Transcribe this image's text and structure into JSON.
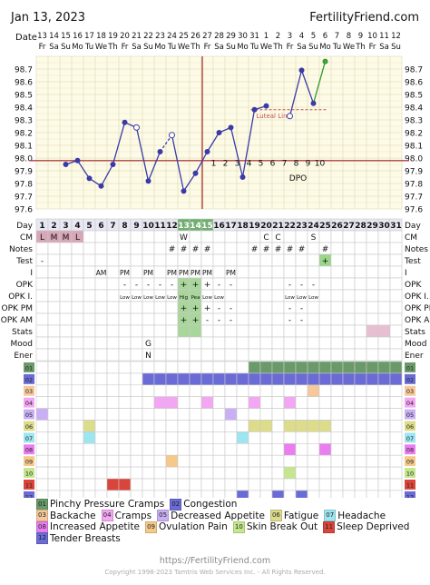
{
  "header": {
    "date": "Jan 13, 2023",
    "brand": "FertilityFriend.com"
  },
  "chart_data": {
    "type": "line",
    "title": "",
    "xlabel": "Day",
    "ylabel": "",
    "ylim": [
      97.6,
      98.8
    ],
    "y_ticks": [
      "98.7",
      "98.6",
      "98.5",
      "98.4",
      "98.3",
      "98.2",
      "98.1",
      "98.0",
      "97.9",
      "97.8",
      "97.7",
      "97.6"
    ],
    "dates": [
      "13",
      "14",
      "15",
      "16",
      "17",
      "18",
      "19",
      "20",
      "21",
      "22",
      "23",
      "24",
      "25",
      "26",
      "27",
      "28",
      "29",
      "30",
      "31",
      "1",
      "2",
      "3",
      "4",
      "5",
      "6",
      "7",
      "8",
      "9",
      "10",
      "11",
      "12"
    ],
    "weekdays": [
      "Fr",
      "Sa",
      "Su",
      "Mo",
      "Tu",
      "We",
      "Th",
      "Fr",
      "Sa",
      "Su",
      "Mo",
      "Tu",
      "We",
      "Th",
      "Fr",
      "Sa",
      "Su",
      "Mo",
      "Tu",
      "We",
      "Th",
      "Fr",
      "Sa",
      "Su",
      "Mo",
      "Tu",
      "We",
      "Th",
      "Fr",
      "Sa",
      "Su"
    ],
    "cycle_days": [
      "1",
      "2",
      "3",
      "4",
      "5",
      "6",
      "7",
      "8",
      "9",
      "10",
      "11",
      "12",
      "13",
      "14",
      "15",
      "16",
      "17",
      "18",
      "19",
      "20",
      "21",
      "22",
      "23",
      "24",
      "25",
      "26",
      "27",
      "28",
      "29",
      "30",
      "31"
    ],
    "temperatures": [
      null,
      null,
      97.95,
      97.98,
      97.84,
      97.78,
      97.95,
      98.28,
      98.24,
      97.82,
      98.05,
      98.18,
      97.74,
      97.88,
      98.05,
      98.2,
      98.24,
      97.85,
      98.38,
      98.41,
      null,
      98.33,
      98.69,
      98.43,
      98.76,
      null,
      null,
      null,
      null,
      null,
      null
    ],
    "open_circle_days": [
      9,
      12,
      22
    ],
    "open_circle_days_note": "cycle days whose temperature point is drawn as an open circle",
    "coverline": 97.98,
    "ovulation_day": 15,
    "luteal_line": {
      "label": "Luteal Line",
      "value": 98.38
    },
    "dpo_label": "DPO",
    "dpo": [
      {
        "day": 15,
        "n": "1"
      },
      {
        "day": 16,
        "n": "2"
      },
      {
        "day": 17,
        "n": "3"
      },
      {
        "day": 18,
        "n": "4"
      },
      {
        "day": 19,
        "n": "5"
      },
      {
        "day": 20,
        "n": "6"
      },
      {
        "day": 21,
        "n": "7"
      },
      {
        "day": 22,
        "n": "8"
      },
      {
        "day": 23,
        "n": "9"
      },
      {
        "day": 24,
        "n": "10"
      }
    ]
  },
  "rows": {
    "labels": {
      "date": "Date",
      "day": "Day",
      "cm": "CM",
      "notes": "Notes",
      "test": "Test",
      "intercourse": "I",
      "opk": "OPK",
      "opki": "OPK I.",
      "opkpm": "OPK PM",
      "opkam": "OPK AM",
      "stats": "Stats",
      "mood": "Mood",
      "ener": "Ener"
    },
    "cm": {
      "1": "L",
      "2": "M",
      "3": "M",
      "4": "L",
      "13": "W",
      "20": "C",
      "21": "C",
      "24": "S"
    },
    "cm_colors": {
      "L": "#d9a6b8",
      "M": "#d9a6b8"
    },
    "notes": {
      "12": "#",
      "13": "#",
      "14": "#",
      "15": "#",
      "19": "#",
      "20": "#",
      "21": "#",
      "22": "#",
      "23": "#",
      "25": "#"
    },
    "test": {
      "1": "-",
      "25": "+"
    },
    "intercourse": {
      "6": "AM",
      "8": "PM",
      "10": "PM",
      "12": "PM",
      "13": "PM",
      "14": "PM",
      "15": "PM",
      "17": "PM"
    },
    "opk": {
      "8": "-",
      "9": "-",
      "10": "-",
      "11": "-",
      "12": "-",
      "13": "+",
      "14": "+",
      "15": "+",
      "16": "-",
      "17": "-",
      "22": "-",
      "23": "-",
      "24": "-"
    },
    "opki": {
      "8": "Low",
      "9": "Low",
      "10": "Low",
      "11": "Low",
      "12": "Low",
      "13": "Hig",
      "14": "Pea",
      "15": "Low",
      "16": "Low",
      "22": "Low",
      "23": "Low",
      "24": "Low"
    },
    "opkpm": {
      "13": "+",
      "14": "+",
      "15": "+",
      "16": "-",
      "17": "-",
      "22": "-",
      "23": "-"
    },
    "opkam": {
      "13": "+",
      "14": "+",
      "15": "-",
      "16": "-",
      "17": "-",
      "22": "-",
      "23": "-"
    },
    "mood": {
      "10": "G"
    },
    "ener": {
      "10": "N"
    }
  },
  "symptoms": {
    "codes": [
      "01",
      "02",
      "03",
      "04",
      "05",
      "06",
      "07",
      "08",
      "09",
      "10",
      "11",
      "12"
    ],
    "colors": {
      "01": "#6a9a6a",
      "02": "#6b6bd6",
      "03": "#f6c89a",
      "04": "#f3a6f3",
      "05": "#c9b0f5",
      "06": "#dcdc8a",
      "07": "#9de6ef",
      "08": "#ea7ef0",
      "09": "#f5c98a",
      "10": "#c4e78e",
      "11": "#d9453a",
      "12": "#6b6bd6"
    },
    "cells": {
      "01": [
        19,
        20,
        21,
        22,
        23,
        24,
        25,
        26,
        27,
        28,
        29,
        30,
        31
      ],
      "02": [
        10,
        11,
        12,
        13,
        14,
        15,
        16,
        17,
        18,
        19,
        20,
        21,
        22,
        23,
        24,
        25,
        26,
        27,
        28,
        29,
        30,
        31
      ],
      "03": [
        24
      ],
      "04": [
        11,
        12,
        15,
        19,
        22
      ],
      "05": [
        1,
        17
      ],
      "06": [
        5,
        19,
        20,
        22,
        23,
        24,
        25
      ],
      "07": [
        5,
        18
      ],
      "08": [
        22,
        25
      ],
      "09": [
        12
      ],
      "10": [
        22
      ],
      "11": [
        7,
        8
      ],
      "12": [
        18,
        21,
        23
      ]
    }
  },
  "legend": [
    [
      {
        "code": "01",
        "label": "Pinchy Pressure Cramps"
      },
      {
        "code": "02",
        "label": "Congestion"
      }
    ],
    [
      {
        "code": "03",
        "label": "Backache"
      },
      {
        "code": "04",
        "label": "Cramps"
      },
      {
        "code": "05",
        "label": "Decreased Appetite"
      },
      {
        "code": "06",
        "label": "Fatigue"
      },
      {
        "code": "07",
        "label": "Headache"
      }
    ],
    [
      {
        "code": "08",
        "label": "Increased Appetite"
      },
      {
        "code": "09",
        "label": "Ovulation Pain"
      },
      {
        "code": "10",
        "label": "Skin Break Out"
      },
      {
        "code": "11",
        "label": "Sleep Deprived"
      }
    ],
    [
      {
        "code": "12",
        "label": "Tender Breasts"
      }
    ]
  ],
  "footer": {
    "url": "https://FertilityFriend.com",
    "copyright": "Copyright 1998-2023 Tamtris Web Services Inc. - All Rights Reserved."
  }
}
